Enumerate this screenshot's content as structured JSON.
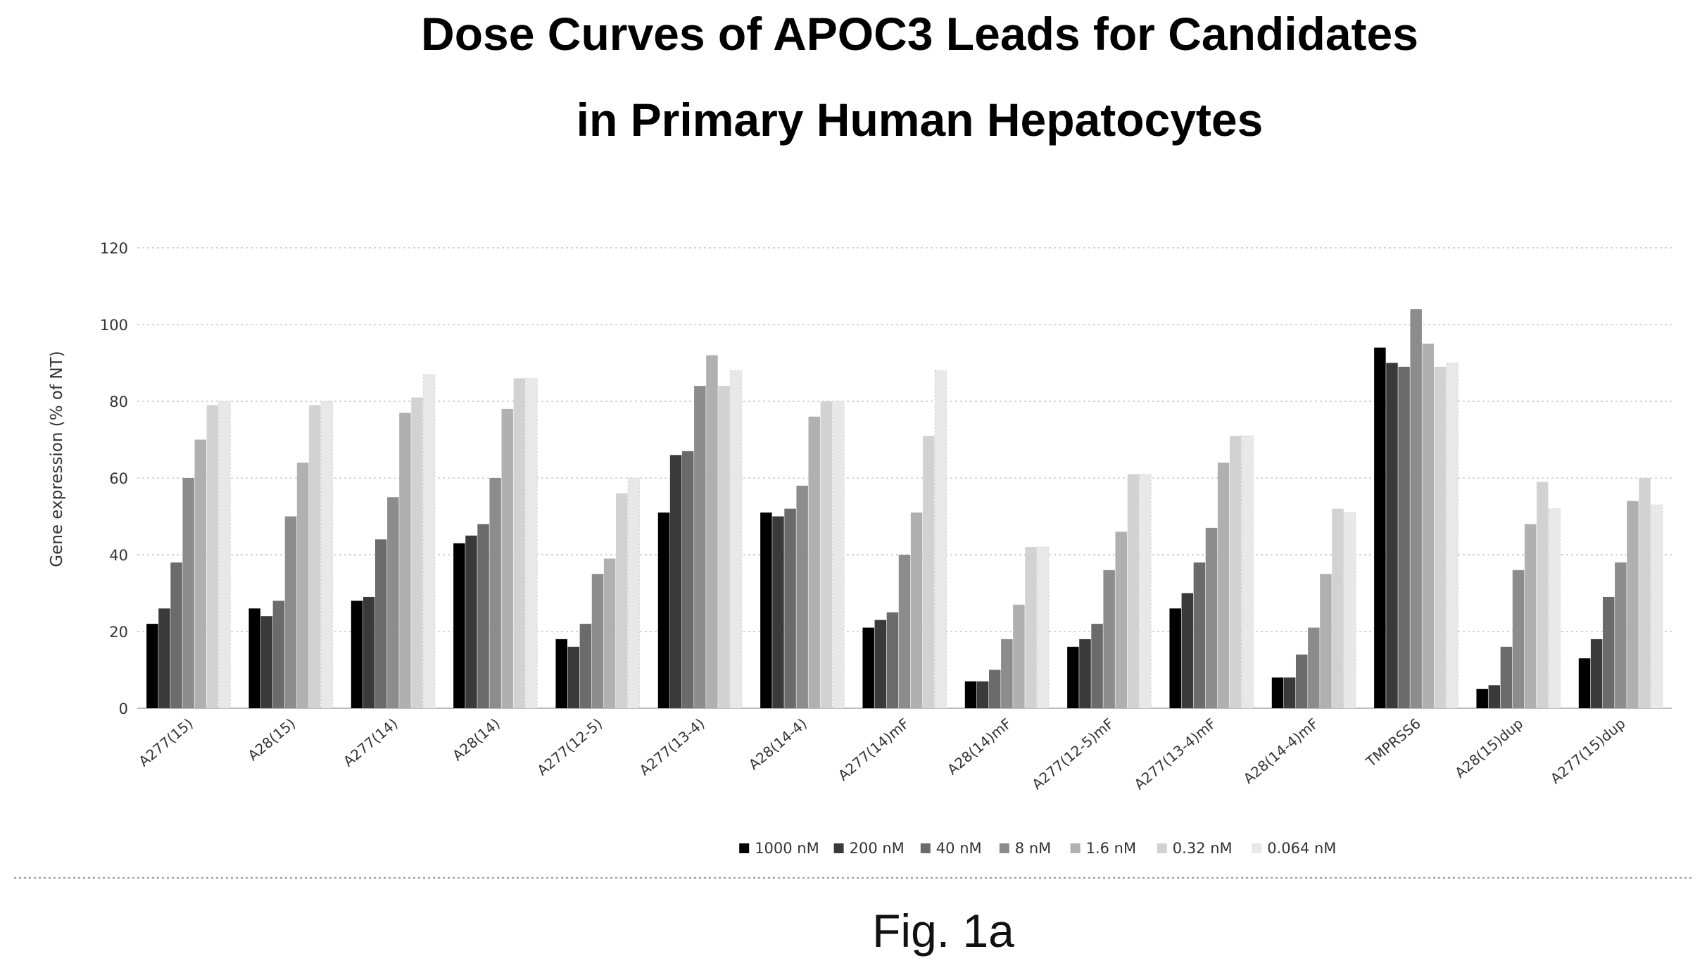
{
  "chart_data": {
    "type": "bar",
    "title": "Dose Curves of APOC3 Leads for Candidates",
    "subtitle": "in Primary Human Hepatocytes",
    "ylabel": "Gene expression (% of NT)",
    "xlabel": "",
    "ylim": [
      0,
      120
    ],
    "yticks": [
      0,
      20,
      40,
      60,
      80,
      100,
      120
    ],
    "grid": true,
    "legend_position": "bottom",
    "categories": [
      "A277(15)",
      "A28(15)",
      "A277(14)",
      "A28(14)",
      "A277(12-5)",
      "A277(13-4)",
      "A28(14-4)",
      "A277(14)mF",
      "A28(14)mF",
      "A277(12-5)mF",
      "A277(13-4)mF",
      "A28(14-4)mF",
      "TMPRSS6",
      "A28(15)dup",
      "A277(15)dup"
    ],
    "series": [
      {
        "name": "1000 nM",
        "color": "#000000",
        "values": [
          22,
          26,
          28,
          43,
          18,
          51,
          51,
          21,
          7,
          16,
          26,
          8,
          94,
          5,
          13
        ]
      },
      {
        "name": "200 nM",
        "color": "#3a3a3a",
        "values": [
          26,
          24,
          29,
          45,
          16,
          66,
          50,
          23,
          7,
          18,
          30,
          8,
          90,
          6,
          18
        ]
      },
      {
        "name": "40 nM",
        "color": "#6b6b6b",
        "values": [
          38,
          28,
          44,
          48,
          22,
          67,
          52,
          25,
          10,
          22,
          38,
          14,
          89,
          16,
          29
        ]
      },
      {
        "name": "8 nM",
        "color": "#8c8c8c",
        "values": [
          60,
          50,
          55,
          60,
          35,
          84,
          58,
          40,
          18,
          36,
          47,
          21,
          104,
          36,
          38
        ]
      },
      {
        "name": "1.6 nM",
        "color": "#b0b0b0",
        "values": [
          70,
          64,
          77,
          78,
          39,
          92,
          76,
          51,
          27,
          46,
          64,
          35,
          95,
          48,
          54
        ]
      },
      {
        "name": "0.32 nM",
        "color": "#d2d2d2",
        "values": [
          79,
          79,
          81,
          86,
          56,
          84,
          80,
          71,
          42,
          61,
          71,
          52,
          89,
          59,
          60
        ]
      },
      {
        "name": "0.064 nM",
        "color": "#e8e8e8",
        "values": [
          80,
          80,
          87,
          86,
          60,
          88,
          80,
          88,
          42,
          61,
          71,
          51,
          90,
          52,
          53
        ]
      }
    ]
  },
  "caption": "Fig. 1a"
}
